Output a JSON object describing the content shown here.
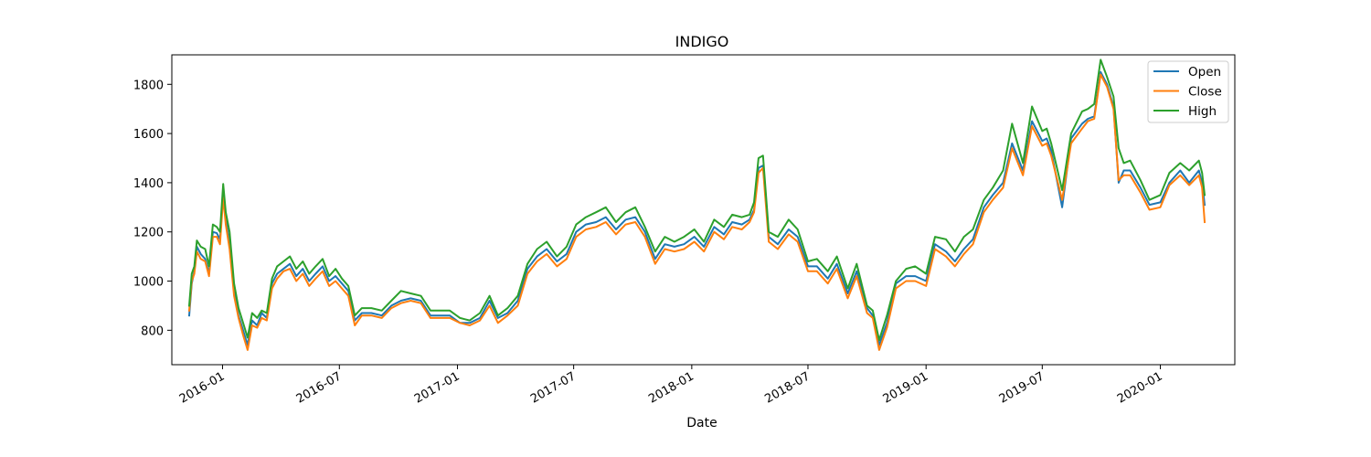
{
  "chart_data": {
    "type": "line",
    "title": "INDIGO",
    "xlabel": "Date",
    "ylabel": "",
    "xlim": [
      "2015-10-14",
      "2020-04-26"
    ],
    "ylim": [
      660,
      1920
    ],
    "x_ticks": [
      "2016-01",
      "2016-07",
      "2017-01",
      "2017-07",
      "2018-01",
      "2018-07",
      "2019-01",
      "2019-07",
      "2020-01"
    ],
    "y_ticks": [
      800,
      1000,
      1200,
      1400,
      1600,
      1800
    ],
    "grid": false,
    "legend_position": "top-right",
    "series": [
      {
        "name": "Open",
        "color": "#1f77b4"
      },
      {
        "name": "Close",
        "color": "#ff7f0e"
      },
      {
        "name": "High",
        "color": "#2ca02c"
      }
    ],
    "x": [
      "2015-11-10",
      "2015-11-14",
      "2015-11-18",
      "2015-11-22",
      "2015-11-28",
      "2015-12-05",
      "2015-12-11",
      "2015-12-17",
      "2015-12-23",
      "2015-12-28",
      "2016-01-02",
      "2016-01-06",
      "2016-01-12",
      "2016-01-19",
      "2016-01-26",
      "2016-02-02",
      "2016-02-09",
      "2016-02-16",
      "2016-02-24",
      "2016-03-02",
      "2016-03-10",
      "2016-03-18",
      "2016-03-26",
      "2016-04-05",
      "2016-04-15",
      "2016-04-25",
      "2016-05-05",
      "2016-05-15",
      "2016-05-25",
      "2016-06-05",
      "2016-06-15",
      "2016-06-25",
      "2016-07-05",
      "2016-07-15",
      "2016-07-25",
      "2016-08-05",
      "2016-08-20",
      "2016-09-05",
      "2016-09-20",
      "2016-10-05",
      "2016-10-20",
      "2016-11-05",
      "2016-11-20",
      "2016-12-05",
      "2016-12-20",
      "2017-01-05",
      "2017-01-20",
      "2017-02-05",
      "2017-02-20",
      "2017-03-05",
      "2017-03-20",
      "2017-04-05",
      "2017-04-20",
      "2017-05-05",
      "2017-05-20",
      "2017-06-05",
      "2017-06-20",
      "2017-07-05",
      "2017-07-20",
      "2017-08-05",
      "2017-08-20",
      "2017-09-05",
      "2017-09-20",
      "2017-10-05",
      "2017-10-20",
      "2017-11-05",
      "2017-11-20",
      "2017-12-05",
      "2017-12-20",
      "2018-01-05",
      "2018-01-20",
      "2018-02-05",
      "2018-02-20",
      "2018-03-05",
      "2018-03-20",
      "2018-04-01",
      "2018-04-08",
      "2018-04-15",
      "2018-04-22",
      "2018-05-01",
      "2018-05-15",
      "2018-06-01",
      "2018-06-15",
      "2018-07-01",
      "2018-07-15",
      "2018-08-01",
      "2018-08-15",
      "2018-09-01",
      "2018-09-15",
      "2018-10-01",
      "2018-10-10",
      "2018-10-20",
      "2018-11-01",
      "2018-11-15",
      "2018-12-01",
      "2018-12-15",
      "2019-01-01",
      "2019-01-15",
      "2019-02-01",
      "2019-02-15",
      "2019-03-01",
      "2019-03-15",
      "2019-04-01",
      "2019-04-15",
      "2019-05-01",
      "2019-05-15",
      "2019-06-01",
      "2019-06-15",
      "2019-07-01",
      "2019-07-08",
      "2019-07-15",
      "2019-08-01",
      "2019-08-15",
      "2019-09-01",
      "2019-09-10",
      "2019-09-20",
      "2019-09-30",
      "2019-10-10",
      "2019-10-20",
      "2019-10-28",
      "2019-11-05",
      "2019-11-15",
      "2019-12-01",
      "2019-12-15",
      "2020-01-01",
      "2020-01-15",
      "2020-02-01",
      "2020-02-15",
      "2020-03-01",
      "2020-03-06",
      "2020-03-10"
    ],
    "values": {
      "Open": [
        860,
        990,
        1040,
        1140,
        1110,
        1090,
        1030,
        1200,
        1195,
        1170,
        1360,
        1250,
        1150,
        960,
        860,
        800,
        740,
        840,
        820,
        870,
        850,
        990,
        1030,
        1050,
        1070,
        1020,
        1050,
        1000,
        1030,
        1060,
        1000,
        1020,
        990,
        960,
        840,
        870,
        870,
        860,
        900,
        920,
        930,
        920,
        860,
        860,
        860,
        830,
        830,
        850,
        920,
        850,
        870,
        920,
        1050,
        1100,
        1130,
        1080,
        1110,
        1200,
        1230,
        1240,
        1260,
        1210,
        1250,
        1260,
        1200,
        1090,
        1150,
        1140,
        1150,
        1180,
        1140,
        1220,
        1190,
        1240,
        1230,
        1250,
        1290,
        1460,
        1470,
        1180,
        1150,
        1210,
        1180,
        1060,
        1060,
        1010,
        1070,
        950,
        1040,
        890,
        860,
        740,
        830,
        990,
        1020,
        1020,
        1000,
        1150,
        1120,
        1080,
        1130,
        1170,
        1300,
        1350,
        1400,
        1560,
        1450,
        1650,
        1570,
        1580,
        1530,
        1300,
        1580,
        1640,
        1660,
        1670,
        1850,
        1800,
        1710,
        1400,
        1450,
        1450,
        1380,
        1310,
        1320,
        1400,
        1450,
        1400,
        1450,
        1400,
        1310
      ],
      "Close": [
        880,
        1000,
        1030,
        1120,
        1090,
        1080,
        1020,
        1180,
        1180,
        1150,
        1340,
        1230,
        1130,
        940,
        850,
        780,
        720,
        820,
        810,
        850,
        840,
        970,
        1010,
        1040,
        1050,
        1000,
        1030,
        980,
        1010,
        1040,
        980,
        1000,
        970,
        940,
        820,
        860,
        860,
        850,
        890,
        910,
        920,
        910,
        850,
        850,
        850,
        830,
        820,
        840,
        900,
        830,
        860,
        900,
        1030,
        1080,
        1110,
        1060,
        1090,
        1180,
        1210,
        1220,
        1240,
        1190,
        1230,
        1240,
        1180,
        1070,
        1130,
        1120,
        1130,
        1160,
        1120,
        1200,
        1170,
        1220,
        1210,
        1240,
        1280,
        1440,
        1460,
        1160,
        1130,
        1190,
        1160,
        1040,
        1040,
        990,
        1050,
        930,
        1020,
        870,
        850,
        720,
        810,
        970,
        1000,
        1000,
        980,
        1130,
        1100,
        1060,
        1110,
        1150,
        1280,
        1330,
        1380,
        1540,
        1430,
        1630,
        1550,
        1560,
        1510,
        1330,
        1560,
        1620,
        1650,
        1660,
        1840,
        1790,
        1700,
        1410,
        1430,
        1430,
        1360,
        1290,
        1300,
        1390,
        1430,
        1390,
        1430,
        1380,
        1240
      ],
      "High": [
        900,
        1030,
        1060,
        1165,
        1140,
        1130,
        1060,
        1230,
        1220,
        1200,
        1395,
        1280,
        1200,
        990,
        890,
        830,
        770,
        870,
        850,
        880,
        870,
        1010,
        1060,
        1080,
        1100,
        1050,
        1080,
        1030,
        1060,
        1090,
        1020,
        1050,
        1010,
        980,
        860,
        890,
        890,
        880,
        920,
        960,
        950,
        940,
        880,
        880,
        880,
        850,
        840,
        870,
        940,
        860,
        890,
        940,
        1070,
        1130,
        1160,
        1100,
        1140,
        1230,
        1260,
        1280,
        1300,
        1240,
        1280,
        1300,
        1220,
        1120,
        1180,
        1160,
        1180,
        1210,
        1160,
        1250,
        1220,
        1270,
        1260,
        1270,
        1320,
        1500,
        1510,
        1200,
        1180,
        1250,
        1210,
        1080,
        1090,
        1040,
        1100,
        970,
        1070,
        900,
        880,
        760,
        860,
        1000,
        1050,
        1060,
        1030,
        1180,
        1170,
        1120,
        1180,
        1210,
        1330,
        1380,
        1450,
        1640,
        1480,
        1710,
        1610,
        1620,
        1560,
        1370,
        1600,
        1690,
        1700,
        1720,
        1900,
        1830,
        1750,
        1540,
        1480,
        1490,
        1410,
        1330,
        1350,
        1440,
        1480,
        1450,
        1490,
        1440,
        1350
      ]
    }
  }
}
